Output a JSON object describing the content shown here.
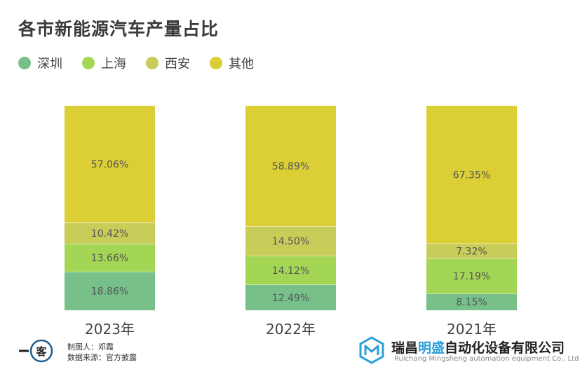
{
  "chart_data": {
    "type": "bar",
    "stacked": true,
    "normalized": true,
    "title": "各市新能源汽车产量占比",
    "categories": [
      "2023年",
      "2022年",
      "2021年"
    ],
    "series": [
      {
        "name": "深圳",
        "color": "#77c08a",
        "values": [
          18.86,
          12.49,
          8.15
        ],
        "labels": [
          "18.86%",
          "12.49%",
          "8.15%"
        ]
      },
      {
        "name": "上海",
        "color": "#a3d655",
        "values": [
          13.66,
          14.12,
          17.19
        ],
        "labels": [
          "13.66%",
          "14.12%",
          "17.19%"
        ]
      },
      {
        "name": "西安",
        "color": "#c8cd5a",
        "values": [
          10.42,
          14.5,
          7.32
        ],
        "labels": [
          "10.42%",
          "14.50%",
          "7.32%"
        ]
      },
      {
        "name": "其他",
        "color": "#dccf36",
        "values": [
          57.06,
          58.89,
          67.35
        ],
        "labels": [
          "57.06%",
          "58.89%",
          "67.35%"
        ]
      }
    ],
    "legend_position": "top-left",
    "grid": false
  },
  "footer": {
    "logo_text": "一客",
    "maker_label": "制图人：邓霞",
    "source_label": "数据来源：官方披露"
  },
  "brand": {
    "name_part1": "瑞昌",
    "name_highlight": "明盛",
    "name_part2": "自动化设备有限公司",
    "name_en": "Ruichang Mingsheng automation equipment Co., Ltd"
  }
}
